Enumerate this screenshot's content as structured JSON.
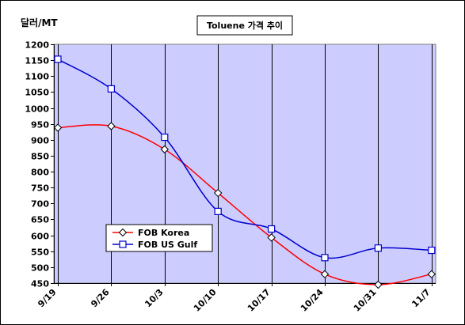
{
  "chart_data": {
    "type": "line",
    "title": "Toluene 가격 추이",
    "ylabel": "달러/MT",
    "xlabel": "",
    "categories": [
      "9/19",
      "9/26",
      "10/3",
      "10/10",
      "10/17",
      "10/24",
      "10/31",
      "11/7"
    ],
    "ylim": [
      450,
      1200
    ],
    "yticks": [
      450,
      500,
      550,
      600,
      650,
      700,
      750,
      800,
      850,
      900,
      950,
      1000,
      1050,
      1100,
      1150,
      1200
    ],
    "grid": "vertical",
    "plot_background": "#ccccff",
    "legend_position": "bottom-left",
    "series": [
      {
        "name": "FOB Korea",
        "color": "#ff0000",
        "marker": "diamond",
        "values": [
          938,
          943,
          870,
          733,
          593,
          478,
          445,
          478
        ]
      },
      {
        "name": "FOB US Gulf",
        "color": "#0000cc",
        "marker": "square",
        "values": [
          1153,
          1060,
          908,
          675,
          620,
          530,
          560,
          553
        ]
      }
    ]
  }
}
